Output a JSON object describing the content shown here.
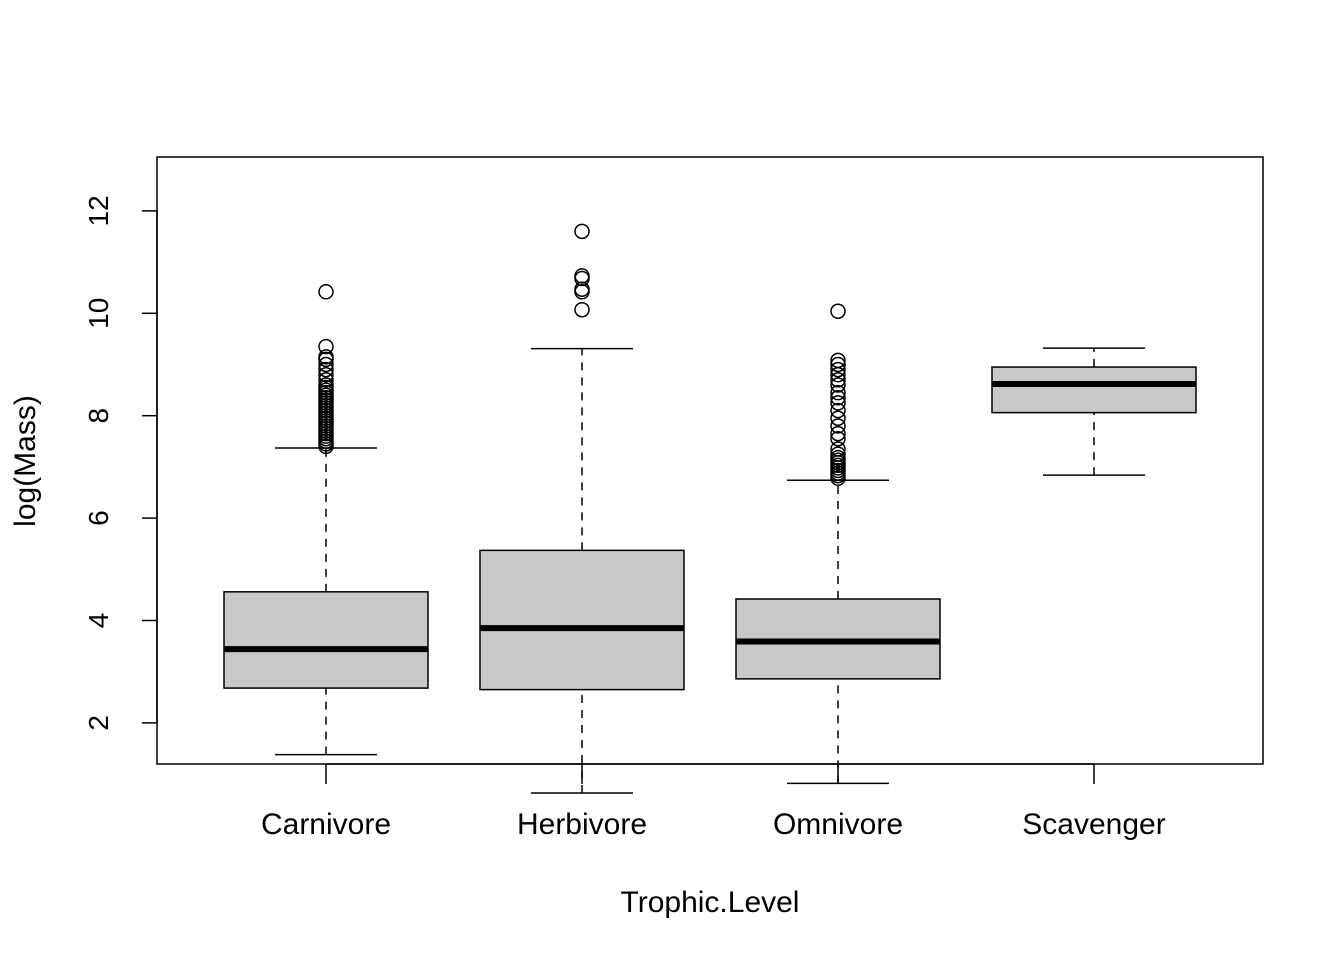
{
  "chart_data": {
    "type": "box",
    "xlabel": "Trophic.Level",
    "ylabel": "log(Mass)",
    "ylim": [
      0.2,
      12.0
    ],
    "y_ticks": [
      2,
      4,
      6,
      8,
      10,
      12
    ],
    "y_tick_labels": [
      "2",
      "4",
      "6",
      "8",
      "10",
      "12"
    ],
    "categories": [
      "Carnivore",
      "Herbivore",
      "Omnivore",
      "Scavenger"
    ],
    "box_fill": "#c8c8c8",
    "series": [
      {
        "category": "Carnivore",
        "whisker_low": 1.38,
        "q1": 2.68,
        "median": 3.44,
        "q3": 4.56,
        "whisker_high": 7.37,
        "outliers": [
          7.4,
          7.45,
          7.5,
          7.55,
          7.6,
          7.65,
          7.7,
          7.75,
          7.8,
          7.85,
          7.9,
          7.95,
          8.0,
          8.05,
          8.1,
          8.15,
          8.2,
          8.25,
          8.3,
          8.35,
          8.4,
          8.45,
          8.5,
          8.55,
          8.6,
          8.7,
          8.8,
          8.9,
          9.0,
          9.1,
          9.15,
          9.35,
          10.42
        ]
      },
      {
        "category": "Herbivore",
        "whisker_low": 0.63,
        "q1": 2.65,
        "median": 3.85,
        "q3": 5.37,
        "whisker_high": 9.31,
        "outliers": [
          10.07,
          10.42,
          10.47,
          10.68,
          10.73,
          11.6
        ]
      },
      {
        "category": "Omnivore",
        "whisker_low": 0.82,
        "q1": 2.86,
        "median": 3.59,
        "q3": 4.42,
        "whisker_high": 6.74,
        "outliers": [
          6.78,
          6.83,
          6.88,
          6.93,
          6.98,
          7.03,
          7.08,
          7.13,
          7.18,
          7.25,
          7.35,
          7.55,
          7.65,
          7.8,
          7.95,
          8.1,
          8.25,
          8.35,
          8.45,
          8.6,
          8.7,
          8.8,
          8.9,
          9.0,
          9.08,
          10.04
        ]
      },
      {
        "category": "Scavenger",
        "whisker_low": 6.84,
        "q1": 8.06,
        "median": 8.62,
        "q3": 8.95,
        "whisker_high": 9.32,
        "outliers": []
      }
    ]
  }
}
